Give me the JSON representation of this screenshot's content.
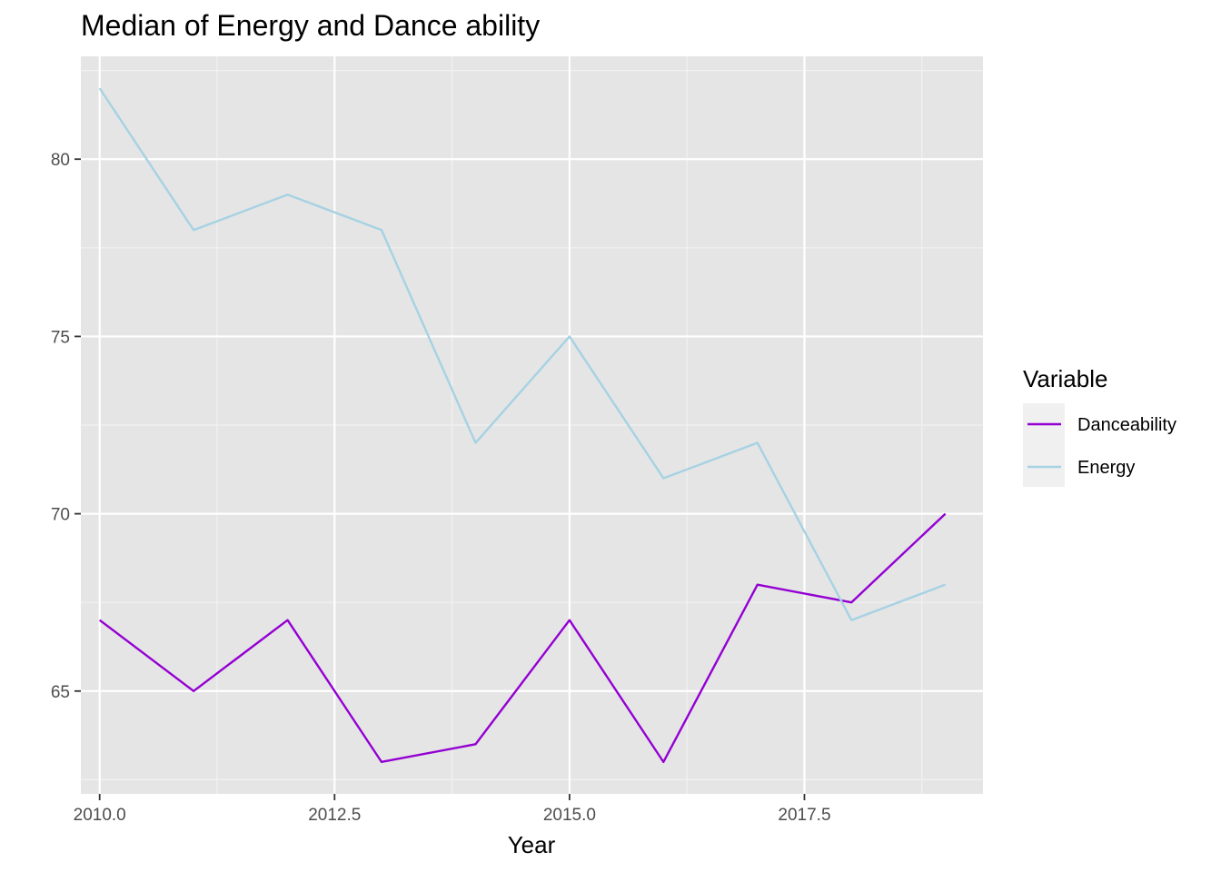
{
  "chart_data": {
    "type": "line",
    "title": "Median of Energy and Dance ability",
    "xlabel": "Year",
    "ylabel": "",
    "xlim": [
      2009.8,
      2019.4
    ],
    "ylim": [
      62.1,
      82.9
    ],
    "x_ticks": [
      2010.0,
      2012.5,
      2015.0,
      2017.5
    ],
    "x_tick_labels": [
      "2010.0",
      "2012.5",
      "2015.0",
      "2017.5"
    ],
    "y_ticks": [
      65,
      70,
      75,
      80
    ],
    "y_tick_labels": [
      "65",
      "70",
      "75",
      "80"
    ],
    "grid": true,
    "panel_background": "#e5e5e5",
    "legend": {
      "title": "Variable",
      "position": "right"
    },
    "x": [
      2010,
      2011,
      2012,
      2013,
      2014,
      2015,
      2016,
      2017,
      2018,
      2019
    ],
    "series": [
      {
        "name": "Danceability",
        "color": "#9400d3",
        "values": [
          67,
          65,
          67,
          63,
          63.5,
          67,
          63,
          68,
          67.5,
          70
        ]
      },
      {
        "name": "Energy",
        "color": "#a6d2e3",
        "values": [
          82,
          78,
          79,
          78,
          72,
          75,
          71,
          72,
          67,
          68
        ]
      }
    ]
  }
}
